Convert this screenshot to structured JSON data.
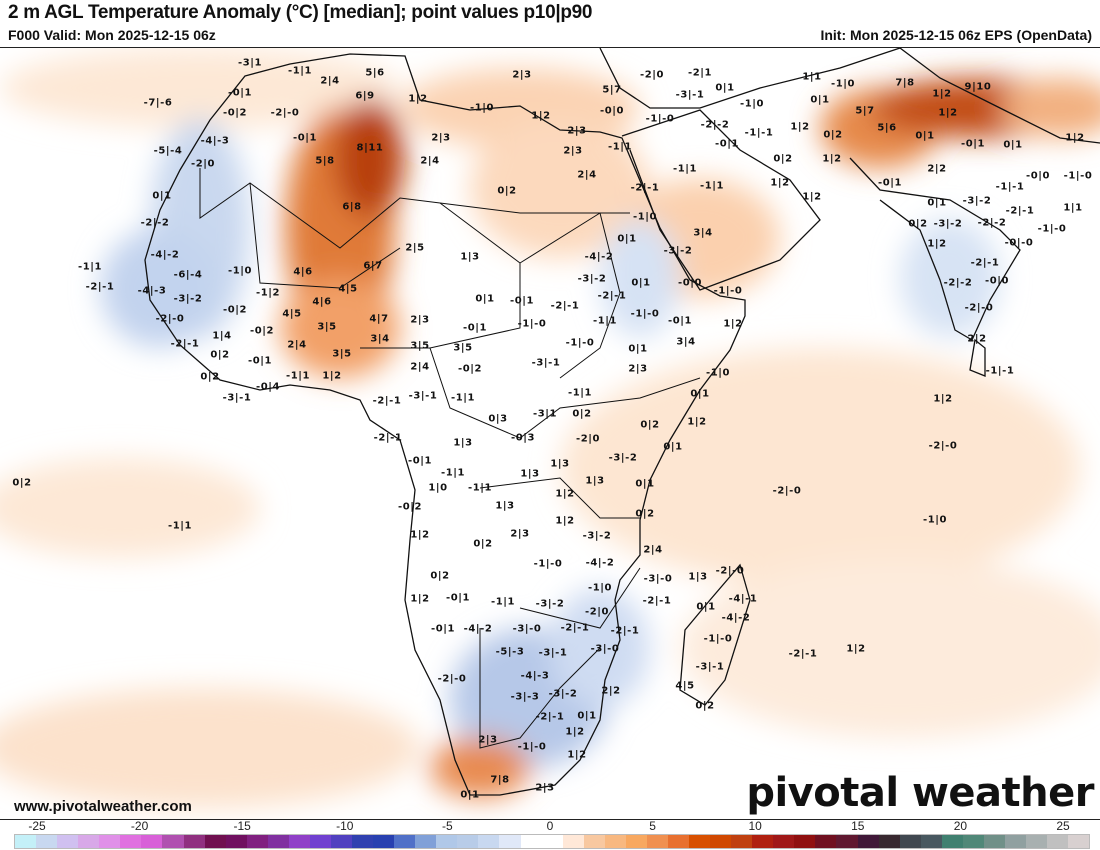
{
  "header": {
    "title": "2 m AGL Temperature Anomaly (°C) [median]; point values p10|p90",
    "valid": "F000 Valid: Mon 2025-12-15 06z",
    "init": "Init: Mon 2025-12-15 06z EPS (OpenData)"
  },
  "footer": {
    "url": "www.pivotalweather.com",
    "logo": "pivotal weather"
  },
  "colorbar": {
    "ticks": [
      "-25",
      "-20",
      "-15",
      "-10",
      "-5",
      "0",
      "5",
      "10",
      "15",
      "20",
      "25"
    ],
    "colors": [
      "#c4f0f8",
      "#c8d8f0",
      "#d0c0f0",
      "#d8a8e8",
      "#e090e8",
      "#e070e0",
      "#d860d8",
      "#b050b0",
      "#903080",
      "#701050",
      "#701060",
      "#802080",
      "#8030a0",
      "#9040c8",
      "#7040d0",
      "#5040c0",
      "#3040b0",
      "#2840b0",
      "#5070c8",
      "#80a0d8",
      "#b0c8e8",
      "#b8cce8",
      "#c8d8f0",
      "#e0e8f8",
      "#ffffff",
      "#ffffff",
      "#ffe8d8",
      "#f8c8a0",
      "#f8b880",
      "#f8a860",
      "#f09050",
      "#e87030",
      "#d85000",
      "#d04800",
      "#c04010",
      "#b02010",
      "#a01818",
      "#901010",
      "#701020",
      "#601830",
      "#401838",
      "#382830",
      "#404850",
      "#485860",
      "#408070",
      "#508878",
      "#709088",
      "#90a0a0",
      "#a8b0b0",
      "#c0c0c0",
      "#d8d0d0"
    ]
  },
  "point_values": [
    "-3|1",
    "-1|1",
    "2|4",
    "5|6",
    "-0|1",
    "-7|-6",
    "-0|2",
    "-2|-0",
    "6|9",
    "-4|-3",
    "-5|-4",
    "-0|1",
    "8|11",
    "-2|0",
    "5|8",
    "0|1",
    "6|8",
    "-2|-2",
    "-4|-2",
    "-1|0",
    "4|6",
    "-6|-4",
    "-1|1",
    "-2|-1",
    "-4|-3",
    "4|5",
    "-1|2",
    "6|7",
    "2|5",
    "1|3",
    "2|3",
    "1|2",
    "-1|0",
    "1|2",
    "5|7",
    "-0|0",
    "-2|0",
    "-2|1",
    "0|1",
    "-3|-1",
    "-1|-0",
    "-2|-2",
    "-0|1",
    "2|3",
    "2|3",
    "-1|1",
    "2|3",
    "2|4",
    "-1|1",
    "2|4",
    "-2|-1",
    "-1|1",
    "0|2",
    "-1|0",
    "3|4",
    "0|1",
    "-4|-2",
    "-3|-2",
    "-3|-2",
    "0|1",
    "-0|0",
    "-1|-0",
    "1|1",
    "-1|0",
    "7|8",
    "9|10",
    "1|2",
    "0|1",
    "-1|0",
    "5|7",
    "1|2",
    "1|2",
    "5|6",
    "-1|-1",
    "0|2",
    "0|1",
    "-0|1",
    "0|1",
    "1|2",
    "0|2",
    "1|2",
    "2|2",
    "-0|0",
    "-1|-0",
    "1|2",
    "-0|1",
    "-1|-1",
    "1|2",
    "0|1",
    "-3|-2",
    "-2|-1",
    "0|2",
    "-3|-2",
    "-2|-2",
    "-1|-0",
    "1|1",
    "1|2",
    "-0|-0",
    "-2|-1",
    "-2|-2",
    "-0|0",
    "-2|-0",
    "2|2",
    "-1|-1",
    "1|2",
    "-2|-0",
    "-2|-0",
    "-1|0",
    "-2|-1",
    "1|2",
    "-3|-2",
    "-0|2",
    "-2|-0",
    "-0|2",
    "1|4",
    "-2|-1",
    "0|2",
    "-0|1",
    "0|2",
    "-0|4",
    "-3|-1",
    "4|5",
    "4|6",
    "3|5",
    "2|4",
    "3|5",
    "-1|1",
    "1|2",
    "0|2",
    "-1|1",
    "4|7",
    "2|3",
    "3|4",
    "3|5",
    "2|4",
    "0|1",
    "-0|1",
    "-0|1",
    "-1|-0",
    "-2|-1",
    "-2|-1",
    "3|5",
    "-0|2",
    "-3|-1",
    "-1|-0",
    "-1|1",
    "-1|-0",
    "-0|1",
    "1|2",
    "3|4",
    "0|1",
    "2|3",
    "-1|0",
    "-1|1",
    "0|1",
    "-3|-1",
    "-1|1",
    "-2|-1",
    "0|3",
    "-3|1",
    "0|2",
    "0|2",
    "1|2",
    "-2|-1",
    "1|3",
    "-0|3",
    "-2|0",
    "0|1",
    "-3|-2",
    "-0|1",
    "-1|1",
    "1|3",
    "1|3",
    "1|3",
    "1|0",
    "-1|1",
    "1|2",
    "0|1",
    "1|3",
    "-0|2",
    "0|2",
    "1|2",
    "1|2",
    "2|3",
    "0|2",
    "-3|-2",
    "2|4",
    "-1|-0",
    "-4|-2",
    "0|2",
    "-3|-0",
    "1|3",
    "-2|-0",
    "-1|0",
    "1|2",
    "-0|1",
    "-1|1",
    "-3|-2",
    "-2|-1",
    "-4|-1",
    "0|1",
    "-2|0",
    "-4|-2",
    "-0|1",
    "-4|-2",
    "-3|-0",
    "-2|-1",
    "-2|-1",
    "-1|-0",
    "-5|-3",
    "-3|-1",
    "-3|-0",
    "-3|-1",
    "-4|-3",
    "-2|-0",
    "-3|-3",
    "-3|-2",
    "2|2",
    "4|5",
    "0|2",
    "-2|-1",
    "0|1",
    "2|3",
    "1|2",
    "-1|-0",
    "1|2",
    "7|8",
    "2|3",
    "0|1"
  ]
}
